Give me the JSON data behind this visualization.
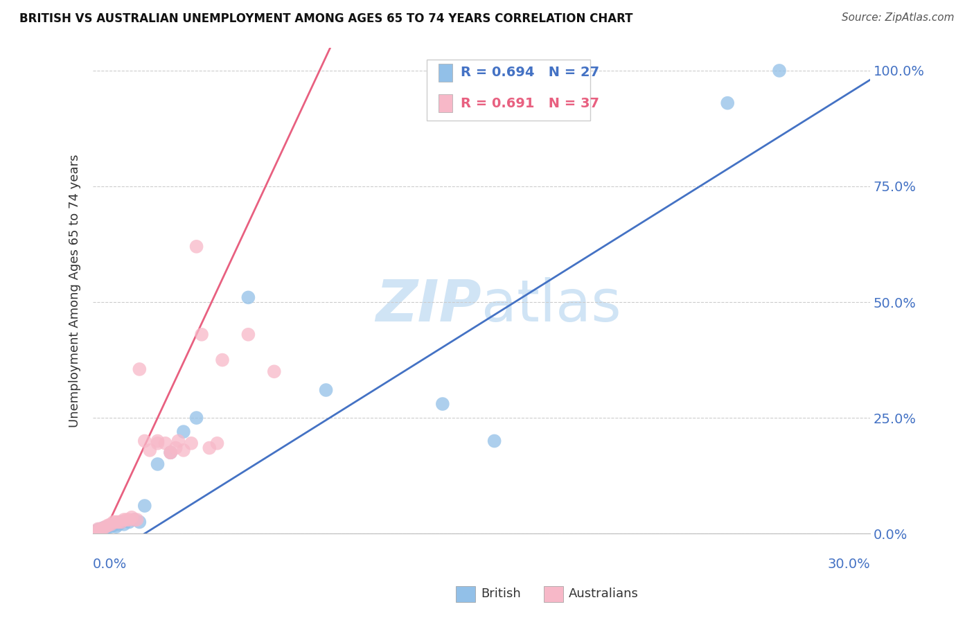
{
  "title": "BRITISH VS AUSTRALIAN UNEMPLOYMENT AMONG AGES 65 TO 74 YEARS CORRELATION CHART",
  "source": "Source: ZipAtlas.com",
  "ylabel": "Unemployment Among Ages 65 to 74 years",
  "yticks": [
    "0.0%",
    "25.0%",
    "50.0%",
    "75.0%",
    "100.0%"
  ],
  "ytick_vals": [
    0,
    0.25,
    0.5,
    0.75,
    1.0
  ],
  "xlim": [
    0,
    0.3
  ],
  "ylim": [
    0,
    1.05
  ],
  "legend_british": "British",
  "legend_australians": "Australians",
  "british_R": "R = 0.694",
  "british_N": "N = 27",
  "australian_R": "R = 0.691",
  "australian_N": "N = 37",
  "british_color": "#92c0e8",
  "australian_color": "#f7b8c8",
  "british_line_color": "#4472c4",
  "australian_line_color": "#e86080",
  "watermark_color": "#d0e4f5",
  "background_color": "#ffffff",
  "british_scatter_x": [
    0.0,
    0.001,
    0.002,
    0.003,
    0.004,
    0.005,
    0.006,
    0.007,
    0.008,
    0.009,
    0.01,
    0.011,
    0.012,
    0.014,
    0.016,
    0.018,
    0.02,
    0.025,
    0.03,
    0.035,
    0.04,
    0.06,
    0.09,
    0.135,
    0.155,
    0.245,
    0.265
  ],
  "british_scatter_y": [
    0.0,
    0.005,
    0.008,
    0.01,
    0.012,
    0.012,
    0.015,
    0.015,
    0.018,
    0.015,
    0.02,
    0.025,
    0.02,
    0.025,
    0.03,
    0.025,
    0.06,
    0.15,
    0.175,
    0.22,
    0.25,
    0.51,
    0.31,
    0.28,
    0.2,
    0.93,
    1.0
  ],
  "australian_scatter_x": [
    0.0,
    0.001,
    0.002,
    0.003,
    0.004,
    0.005,
    0.006,
    0.007,
    0.008,
    0.009,
    0.01,
    0.011,
    0.012,
    0.013,
    0.014,
    0.015,
    0.016,
    0.017,
    0.018,
    0.02,
    0.022,
    0.025,
    0.025,
    0.028,
    0.03,
    0.03,
    0.032,
    0.033,
    0.035,
    0.038,
    0.04,
    0.042,
    0.045,
    0.048,
    0.05,
    0.06,
    0.07
  ],
  "australian_scatter_y": [
    0.0,
    0.005,
    0.01,
    0.01,
    0.012,
    0.015,
    0.018,
    0.02,
    0.025,
    0.025,
    0.025,
    0.025,
    0.03,
    0.03,
    0.03,
    0.035,
    0.03,
    0.03,
    0.355,
    0.2,
    0.18,
    0.2,
    0.195,
    0.195,
    0.175,
    0.175,
    0.185,
    0.2,
    0.18,
    0.195,
    0.62,
    0.43,
    0.185,
    0.195,
    0.375,
    0.43,
    0.35
  ]
}
